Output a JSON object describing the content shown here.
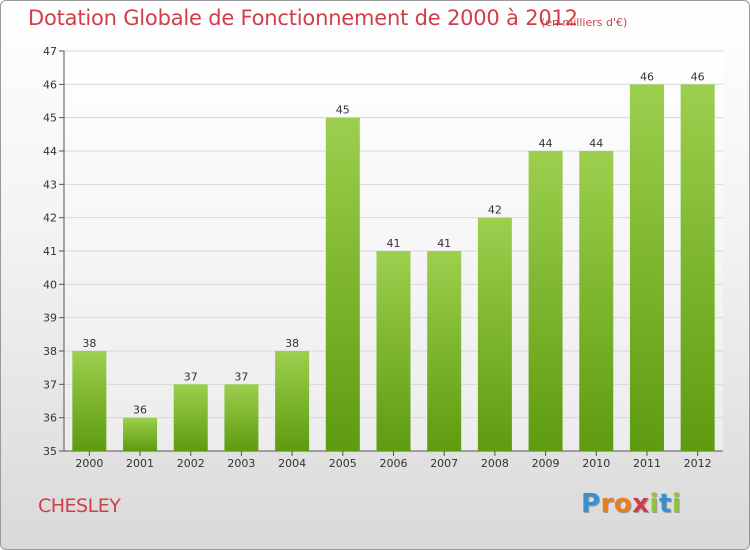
{
  "title": "Dotation Globale de Fonctionnement de 2000 à 2012",
  "units": "(en milliers d'€)",
  "commune": "CHESLEY",
  "logo": {
    "letters": [
      "P",
      "r",
      "o",
      "x",
      "i",
      "t",
      "i"
    ],
    "colors": [
      "#3a8fd0",
      "#e87e1c",
      "#e87e1c",
      "#d23d4a",
      "#8cc43c",
      "#3a8fd0",
      "#8cc43c"
    ]
  },
  "colors": {
    "title": "#d23d4a",
    "bar_top": "#9ccf4e",
    "bar_bottom": "#5e9b10"
  },
  "chart_data": {
    "type": "bar",
    "categories": [
      "2000",
      "2001",
      "2002",
      "2003",
      "2004",
      "2005",
      "2006",
      "2007",
      "2008",
      "2009",
      "2010",
      "2011",
      "2012"
    ],
    "values": [
      38,
      36,
      37,
      37,
      38,
      45,
      41,
      41,
      42,
      44,
      44,
      46,
      46
    ],
    "ylim": [
      35,
      47
    ],
    "yticks": [
      35,
      36,
      37,
      38,
      39,
      40,
      41,
      42,
      43,
      44,
      45,
      46,
      47
    ],
    "grid": true,
    "data_labels": true
  }
}
